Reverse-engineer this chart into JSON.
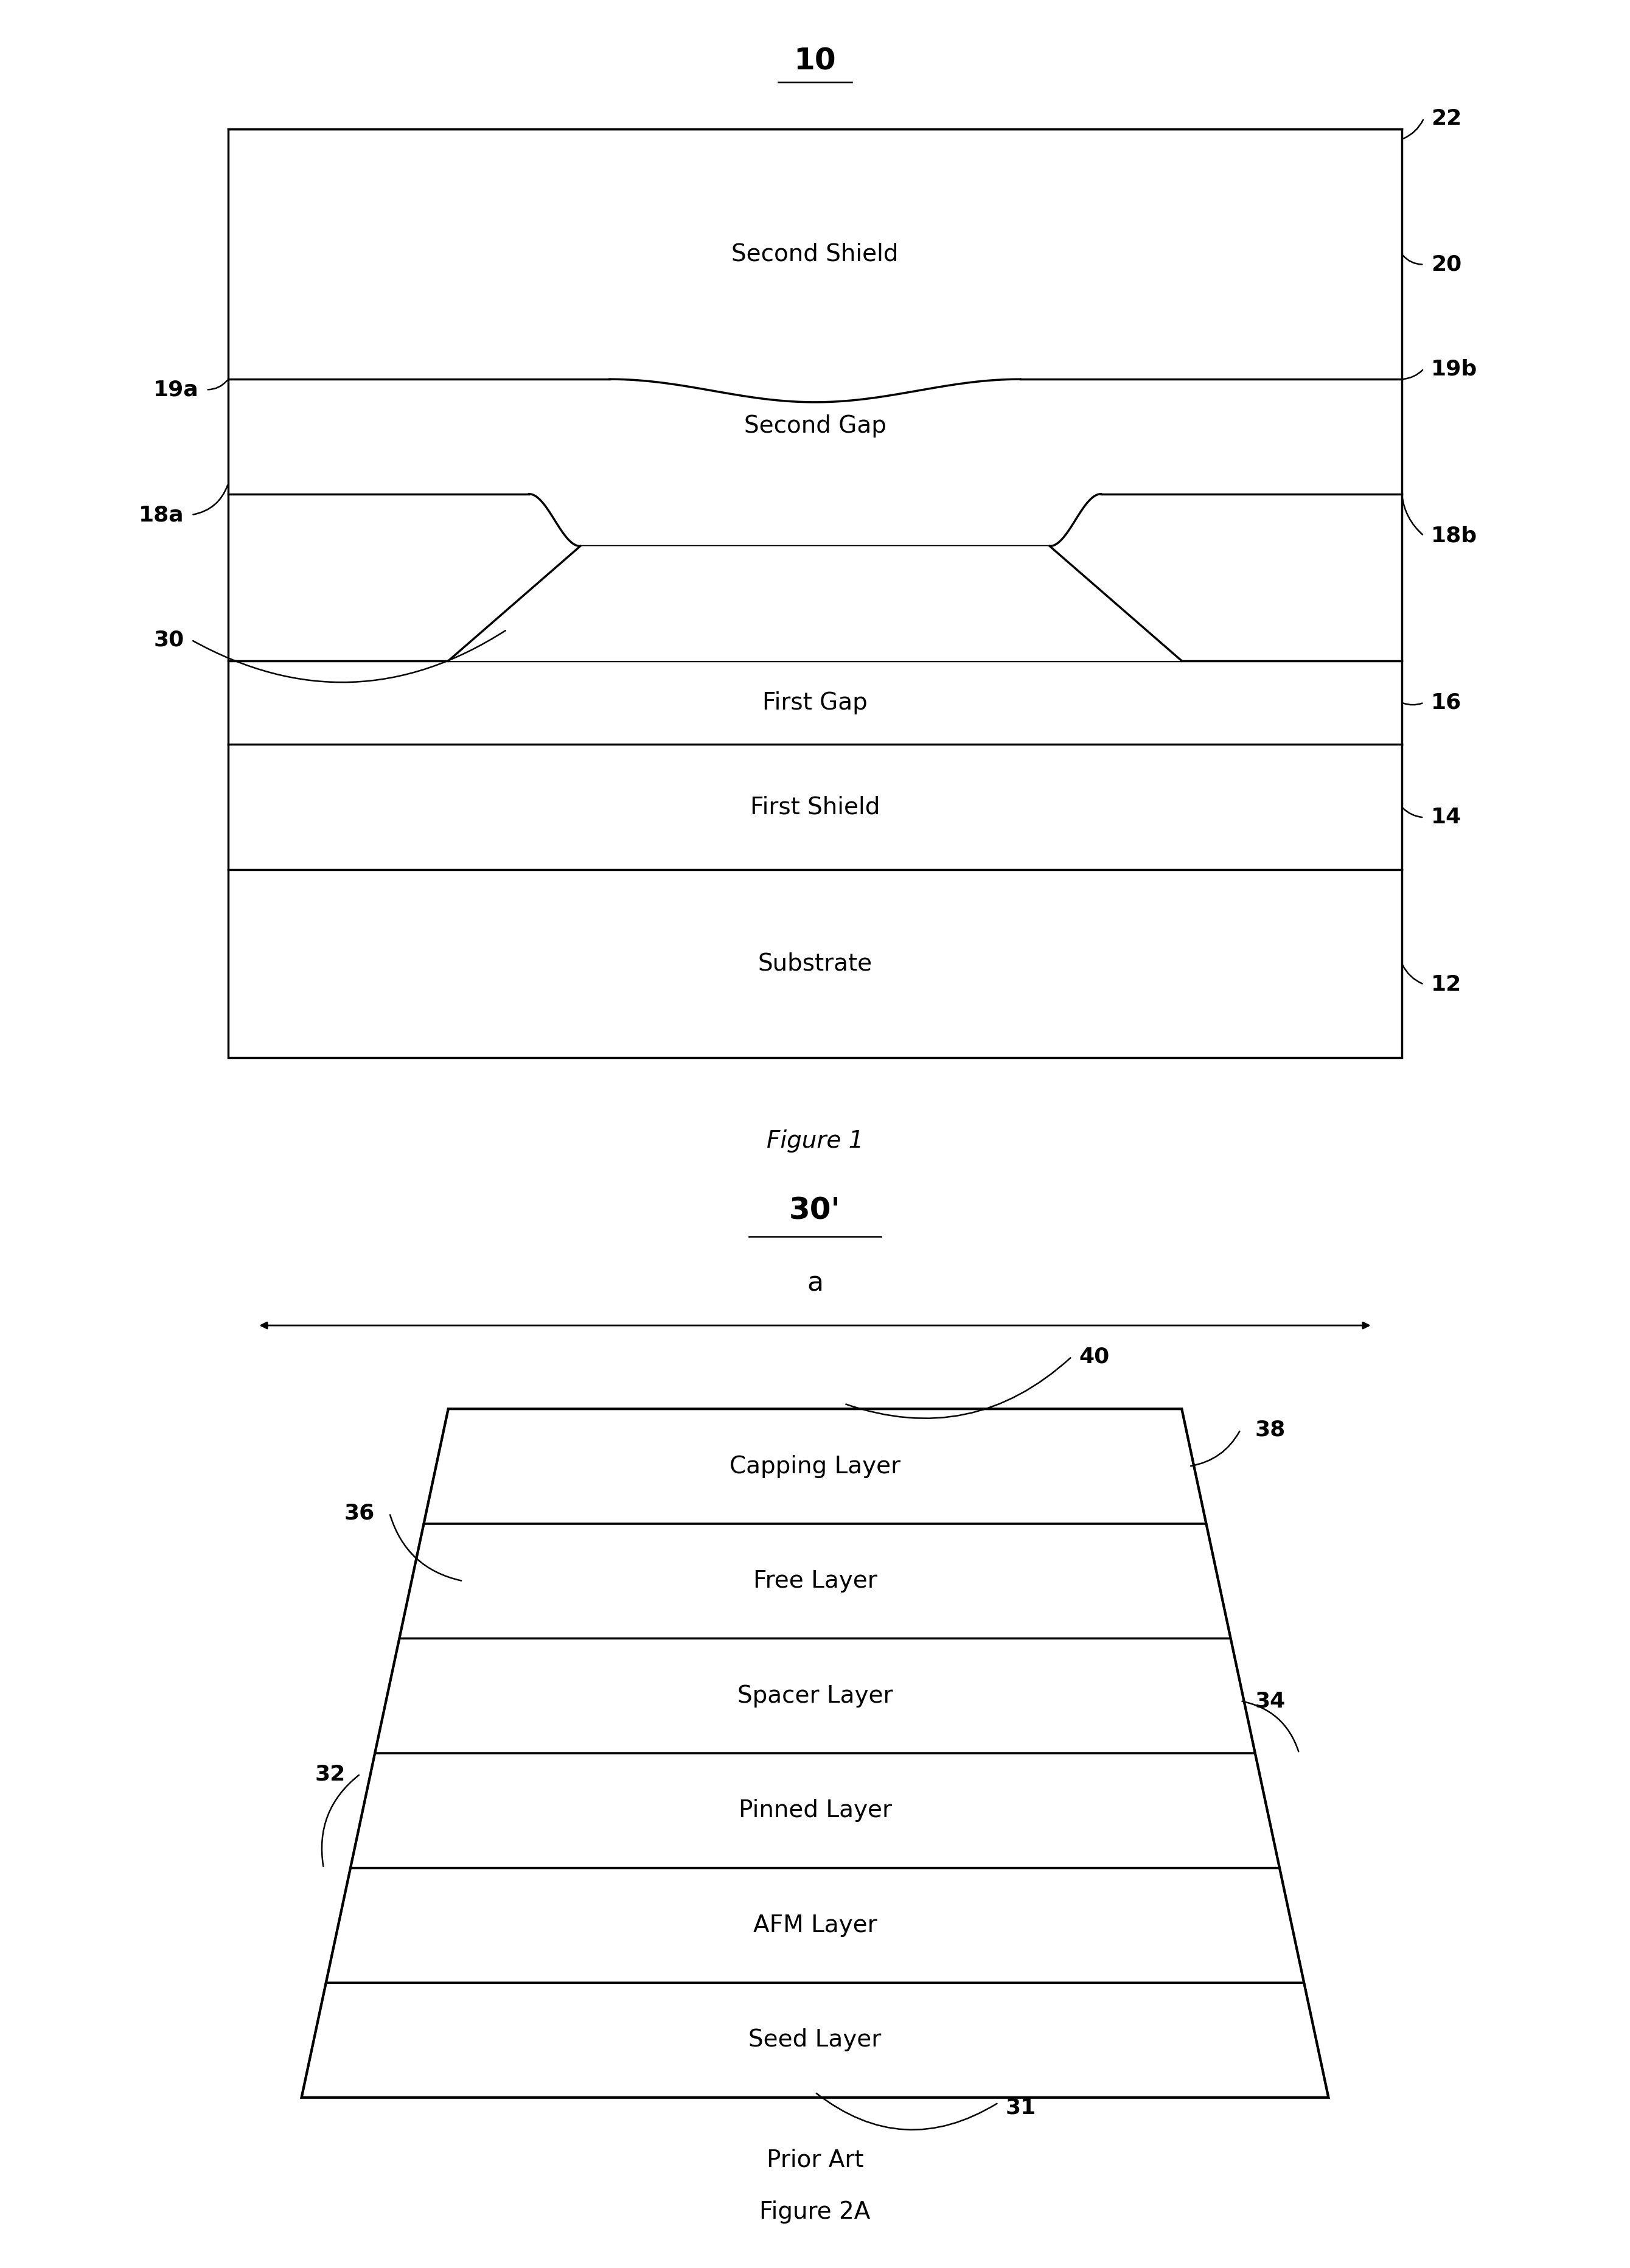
{
  "fig1_title": "10",
  "fig1_caption": "Figure 1",
  "fig2_title": "30’",
  "fig2_caption_line1": "Prior Art",
  "fig2_caption_line2": "Figure 2A",
  "fig1_layer_labels": [
    "Second Shield",
    "Second Gap",
    "First Gap",
    "First Shield",
    "Substrate"
  ],
  "fig2_layers": [
    "Capping Layer",
    "Free Layer",
    "Spacer Layer",
    "Pinned Layer",
    "AFM Layer",
    "Seed Layer"
  ],
  "bg_color": "#ffffff",
  "line_color": "#000000",
  "font_size_label": 28,
  "font_size_annot": 26,
  "font_size_title": 32,
  "font_size_caption": 28,
  "lw_main": 2.5,
  "lw_thin": 1.8
}
